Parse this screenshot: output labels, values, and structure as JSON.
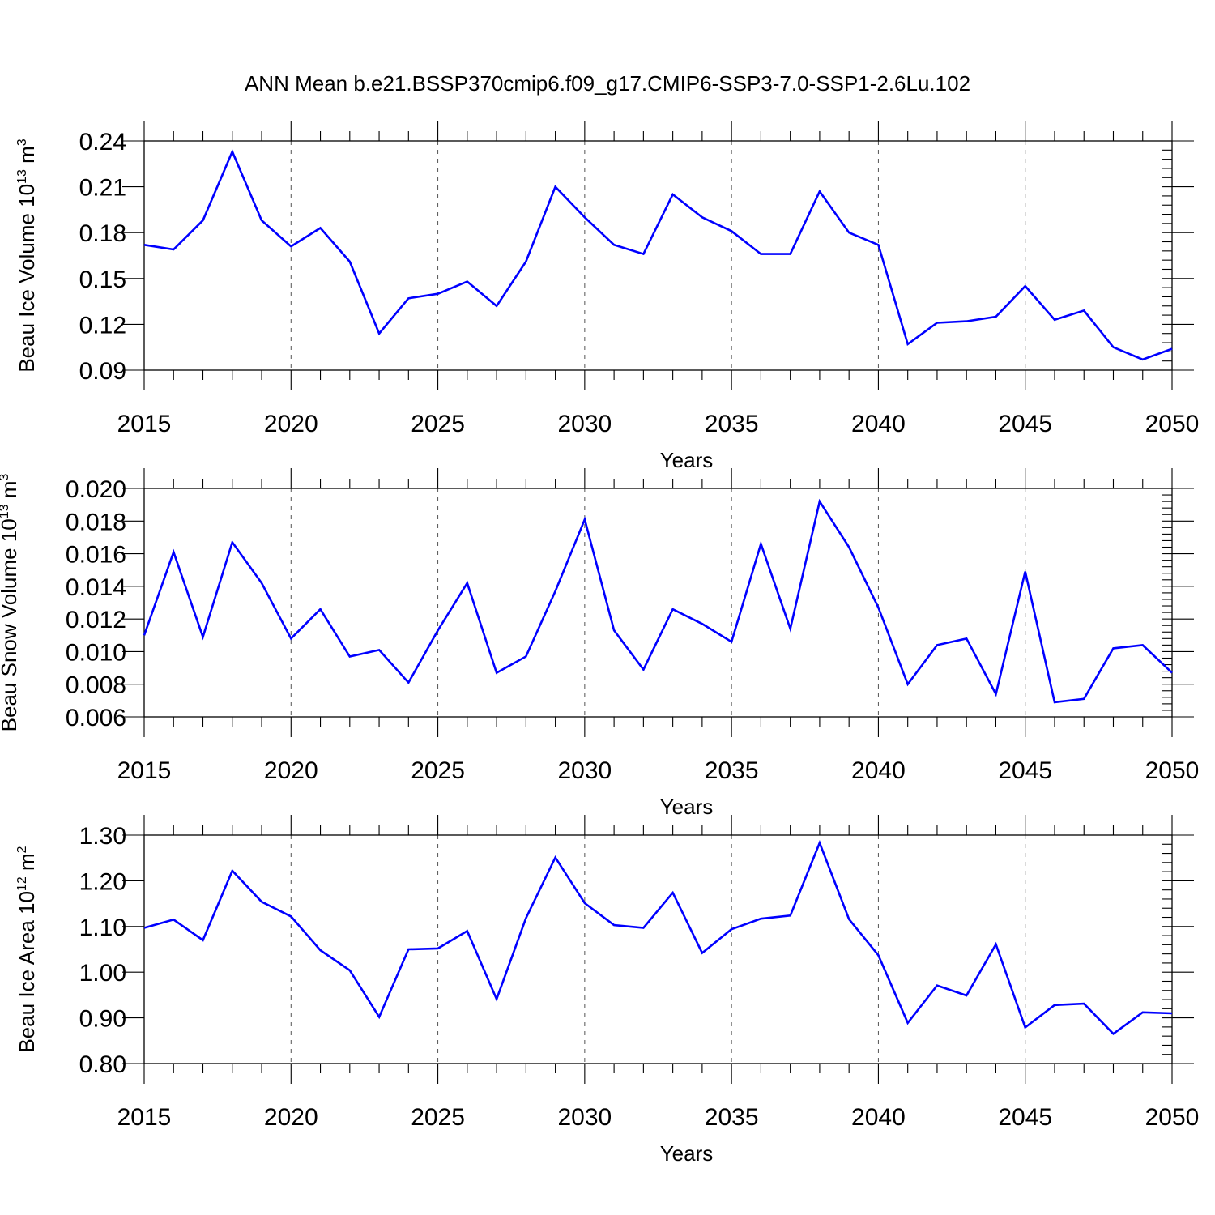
{
  "title": "ANN Mean b.e21.BSSP370cmip6.f09_g17.CMIP6-SSP3-7.0-SSP1-2.6Lu.102",
  "chart_data": [
    {
      "type": "line",
      "ylabel": "Beau Ice Volume",
      "ylabel_unit": "10",
      "ylabel_exp": "13",
      "ylabel_unit2": " m",
      "ylabel_exp2": "3",
      "xlabel": "Years",
      "xlim": [
        2015,
        2050
      ],
      "ylim": [
        0.09,
        0.24
      ],
      "xticks": [
        "2015",
        "2020",
        "2025",
        "2030",
        "2035",
        "2040",
        "2045",
        "2050"
      ],
      "yticks": [
        "0.09",
        "0.12",
        "0.15",
        "0.18",
        "0.21",
        "0.24"
      ],
      "ytick_values": [
        0.09,
        0.12,
        0.15,
        0.18,
        0.21,
        0.24
      ],
      "ygrid_minor_step": 0.006,
      "grid": "vertical dashed at major x ticks",
      "color": "#0000ff",
      "x": [
        2015,
        2016,
        2017,
        2018,
        2019,
        2020,
        2021,
        2022,
        2023,
        2024,
        2025,
        2026,
        2027,
        2028,
        2029,
        2030,
        2031,
        2032,
        2033,
        2034,
        2035,
        2036,
        2037,
        2038,
        2039,
        2040,
        2041,
        2042,
        2043,
        2044,
        2045,
        2046,
        2047,
        2048,
        2049,
        2050
      ],
      "values": [
        0.172,
        0.169,
        0.188,
        0.233,
        0.188,
        0.171,
        0.183,
        0.161,
        0.114,
        0.137,
        0.14,
        0.148,
        0.132,
        0.161,
        0.21,
        0.19,
        0.172,
        0.166,
        0.205,
        0.19,
        0.181,
        0.166,
        0.166,
        0.207,
        0.18,
        0.172,
        0.107,
        0.121,
        0.122,
        0.125,
        0.145,
        0.123,
        0.129,
        0.105,
        0.097,
        0.104
      ]
    },
    {
      "type": "line",
      "ylabel": "Beau Snow Volume",
      "ylabel_unit": "10",
      "ylabel_exp": "13",
      "ylabel_unit2": " m",
      "ylabel_exp2": "3",
      "xlabel": "Years",
      "xlim": [
        2015,
        2050
      ],
      "ylim": [
        0.006,
        0.02
      ],
      "xticks": [
        "2015",
        "2020",
        "2025",
        "2030",
        "2035",
        "2040",
        "2045",
        "2050"
      ],
      "yticks": [
        "0.006",
        "0.008",
        "0.010",
        "0.012",
        "0.014",
        "0.016",
        "0.018",
        "0.020"
      ],
      "ytick_values": [
        0.006,
        0.008,
        0.01,
        0.012,
        0.014,
        0.016,
        0.018,
        0.02
      ],
      "ygrid_minor_step": 0.0004,
      "grid": "vertical dashed at major x ticks",
      "color": "#0000ff",
      "x": [
        2015,
        2016,
        2017,
        2018,
        2019,
        2020,
        2021,
        2022,
        2023,
        2024,
        2025,
        2026,
        2027,
        2028,
        2029,
        2030,
        2031,
        2032,
        2033,
        2034,
        2035,
        2036,
        2037,
        2038,
        2039,
        2040,
        2041,
        2042,
        2043,
        2044,
        2045,
        2046,
        2047,
        2048,
        2049,
        2050
      ],
      "values": [
        0.011,
        0.0161,
        0.0109,
        0.0167,
        0.0142,
        0.0108,
        0.0126,
        0.0097,
        0.0101,
        0.0081,
        0.0113,
        0.0142,
        0.0087,
        0.0097,
        0.0137,
        0.0181,
        0.0113,
        0.0089,
        0.0126,
        0.0117,
        0.0106,
        0.0166,
        0.0114,
        0.0192,
        0.0164,
        0.0127,
        0.008,
        0.0104,
        0.0108,
        0.0074,
        0.0149,
        0.0069,
        0.0071,
        0.0102,
        0.0104,
        0.0087
      ]
    },
    {
      "type": "line",
      "ylabel": "Beau Ice Area",
      "ylabel_unit": "10",
      "ylabel_exp": "12",
      "ylabel_unit2": " m",
      "ylabel_exp2": "2",
      "xlabel": "Years",
      "xlim": [
        2015,
        2050
      ],
      "ylim": [
        0.8,
        1.3
      ],
      "xticks": [
        "2015",
        "2020",
        "2025",
        "2030",
        "2035",
        "2040",
        "2045",
        "2050"
      ],
      "yticks": [
        "0.80",
        "0.90",
        "1.00",
        "1.10",
        "1.20",
        "1.30"
      ],
      "ytick_values": [
        0.8,
        0.9,
        1.0,
        1.1,
        1.2,
        1.3
      ],
      "ygrid_minor_step": 0.02,
      "grid": "vertical dashed at major x ticks",
      "color": "#0000ff",
      "x": [
        2015,
        2016,
        2017,
        2018,
        2019,
        2020,
        2021,
        2022,
        2023,
        2024,
        2025,
        2026,
        2027,
        2028,
        2029,
        2030,
        2031,
        2032,
        2033,
        2034,
        2035,
        2036,
        2037,
        2038,
        2039,
        2040,
        2041,
        2042,
        2043,
        2044,
        2045,
        2046,
        2047,
        2048,
        2049,
        2050
      ],
      "values": [
        1.097,
        1.115,
        1.07,
        1.222,
        1.154,
        1.122,
        1.048,
        1.004,
        0.902,
        1.05,
        1.052,
        1.09,
        0.941,
        1.118,
        1.251,
        1.151,
        1.103,
        1.097,
        1.174,
        1.042,
        1.094,
        1.117,
        1.124,
        1.283,
        1.116,
        1.037,
        0.889,
        0.971,
        0.949,
        1.061,
        0.879,
        0.928,
        0.931,
        0.865,
        0.912,
        0.91
      ]
    }
  ]
}
